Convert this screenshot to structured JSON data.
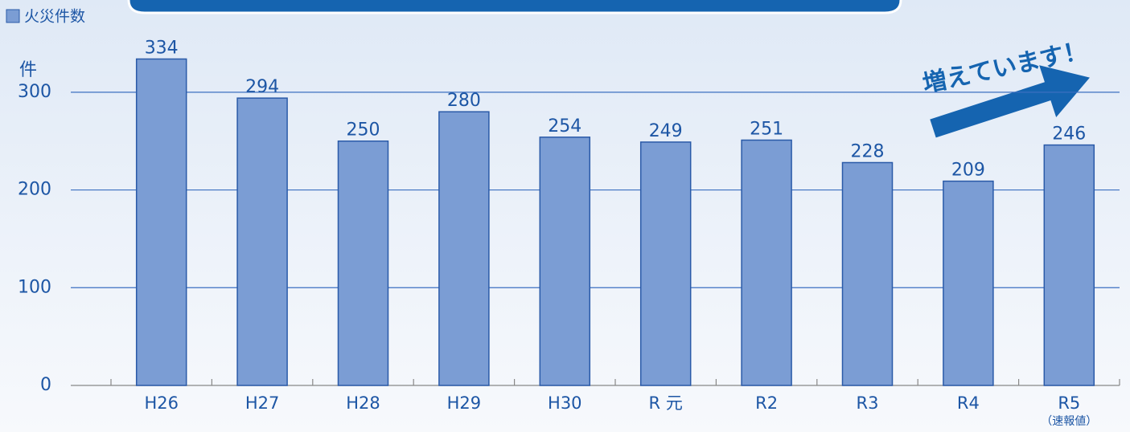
{
  "chart_data": {
    "type": "bar",
    "categories": [
      "H26",
      "H27",
      "H28",
      "H29",
      "H30",
      "R 元",
      "R2",
      "R3",
      "R4",
      "R5"
    ],
    "category_note": "（速報値）",
    "series": [
      {
        "name": "火災件数",
        "color": "#7b9dd4",
        "values": [
          334,
          294,
          250,
          280,
          254,
          249,
          251,
          228,
          209,
          246
        ]
      }
    ],
    "ylim": [
      0,
      350
    ],
    "yticks": [
      0,
      100,
      200,
      300
    ],
    "y_unit": "件",
    "grid": true,
    "annotation": "増えています！"
  }
}
